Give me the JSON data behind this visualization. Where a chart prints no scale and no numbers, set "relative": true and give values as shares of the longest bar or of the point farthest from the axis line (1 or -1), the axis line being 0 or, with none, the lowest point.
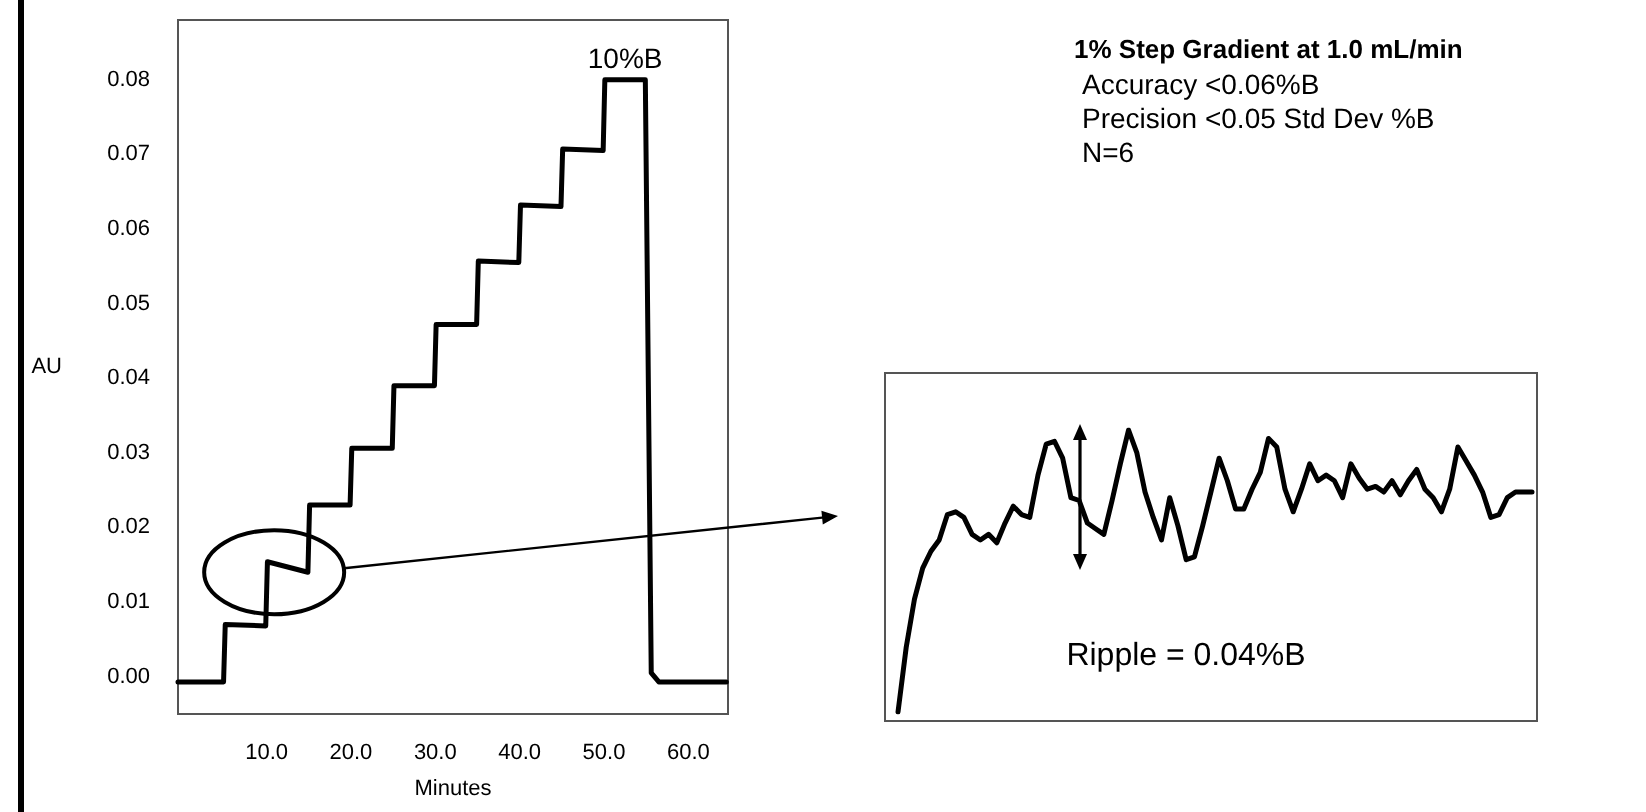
{
  "chart_data": [
    {
      "type": "line",
      "xlabel": "Minutes",
      "ylabel": "AU",
      "annotations": [
        {
          "text": "10%B",
          "x": 52.5,
          "y": 0.08
        }
      ],
      "series": [
        {
          "color": "#000000",
          "x": [
            -0.5,
            4.9,
            5.1,
            9.9,
            10.1,
            14.9,
            15.1,
            19.9,
            20.1,
            24.9,
            25.1,
            29.9,
            30.1,
            34.9,
            35.1,
            39.9,
            40.1,
            44.9,
            45.1,
            49.9,
            50.1,
            54.9,
            55.6,
            56.5,
            64.5
          ],
          "values": [
            -0.0007,
            -0.0007,
            0.007,
            0.0068,
            0.0154,
            0.014,
            0.023,
            0.023,
            0.0306,
            0.0306,
            0.039,
            0.039,
            0.0472,
            0.0472,
            0.0557,
            0.0555,
            0.0632,
            0.063,
            0.0707,
            0.0705,
            0.08,
            0.08,
            0.0005,
            -0.0007,
            -0.0007
          ]
        }
      ],
      "xlim": [
        -0.5,
        64.7
      ],
      "ylim": [
        -0.005,
        0.088
      ],
      "xticks": [
        {
          "value": 10,
          "label": "10.0"
        },
        {
          "value": 20,
          "label": "20.0"
        },
        {
          "value": 30,
          "label": "30.0"
        },
        {
          "value": 40,
          "label": "40.0"
        },
        {
          "value": 50,
          "label": "50.0"
        },
        {
          "value": 60,
          "label": "60.0"
        }
      ],
      "yticks": [
        {
          "value": 0,
          "label": "0.00"
        },
        {
          "value": 0.01,
          "label": "0.01"
        },
        {
          "value": 0.02,
          "label": "0.02"
        },
        {
          "value": 0.03,
          "label": "0.03"
        },
        {
          "value": 0.04,
          "label": "0.04"
        },
        {
          "value": 0.05,
          "label": "0.05"
        },
        {
          "value": 0.06,
          "label": "0.06"
        },
        {
          "value": 0.07,
          "label": "0.07"
        },
        {
          "value": 0.08,
          "label": "0.08"
        }
      ],
      "grid": false,
      "marker": "none",
      "line_style": "solid"
    },
    {
      "type": "line",
      "relative": true,
      "title": "1% Step Gradient at 1.0 mL/min",
      "annotations": [
        "Accuracy <0.06%B",
        "Precision <0.05 Std Dev %B",
        "N=6",
        "Ripple = 0.04%B"
      ],
      "categories": [
        null,
        null,
        null,
        null,
        null,
        null,
        null,
        null,
        null,
        null,
        null,
        null,
        null,
        null,
        null,
        null,
        null,
        null,
        null,
        null,
        null,
        null,
        null,
        null,
        null,
        null,
        null,
        null,
        null,
        null,
        null,
        null,
        null,
        null,
        null,
        null,
        null,
        null,
        null,
        null,
        null,
        null,
        null,
        null,
        null,
        null,
        null,
        null,
        null,
        null,
        null,
        null,
        null,
        null,
        null,
        null,
        null,
        null,
        null,
        null,
        null,
        null,
        null,
        null,
        null,
        null,
        null,
        null,
        null,
        null,
        null,
        null,
        null,
        null,
        null,
        null,
        null,
        null
      ],
      "series": [
        {
          "color": "#000000",
          "values": [
            0,
            0.23,
            0.4,
            0.51,
            0.57,
            0.61,
            0.7,
            0.71,
            0.69,
            0.63,
            0.61,
            0.63,
            0.6,
            0.67,
            0.73,
            0.7,
            0.69,
            0.84,
            0.95,
            0.96,
            0.9,
            0.76,
            0.75,
            0.67,
            0.65,
            0.63,
            0.75,
            0.88,
            1,
            0.92,
            0.78,
            0.69,
            0.61,
            0.76,
            0.66,
            0.54,
            0.55,
            0.66,
            0.78,
            0.9,
            0.82,
            0.72,
            0.72,
            0.79,
            0.85,
            0.97,
            0.94,
            0.79,
            0.71,
            0.79,
            0.88,
            0.82,
            0.84,
            0.82,
            0.76,
            0.88,
            0.83,
            0.79,
            0.8,
            0.78,
            0.82,
            0.77,
            0.82,
            0.86,
            0.79,
            0.76,
            0.71,
            0.79,
            0.94,
            0.89,
            0.84,
            0.78,
            0.69,
            0.7,
            0.76,
            0.78,
            0.78,
            0.78
          ]
        }
      ],
      "grid": false,
      "marker": "none",
      "line_style": "solid"
    }
  ]
}
